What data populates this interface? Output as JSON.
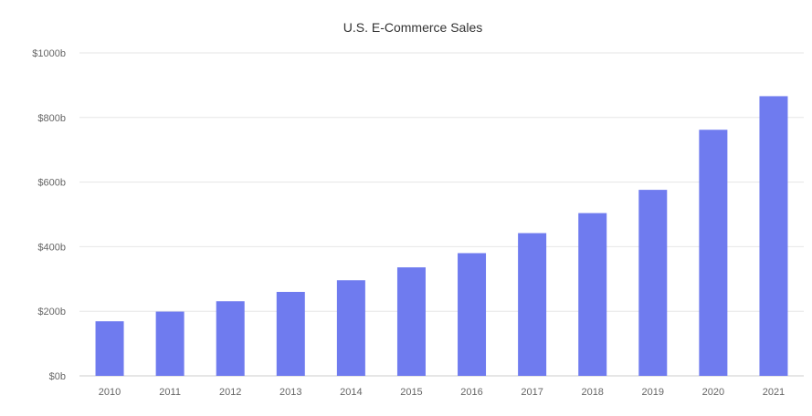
{
  "chart_data": {
    "type": "bar",
    "title": "U.S. E-Commerce Sales",
    "xlabel": "",
    "ylabel": "",
    "categories": [
      "2010",
      "2011",
      "2012",
      "2013",
      "2014",
      "2015",
      "2016",
      "2017",
      "2018",
      "2019",
      "2020",
      "2021"
    ],
    "values": [
      169,
      199,
      231,
      260,
      296,
      336,
      380,
      442,
      504,
      576,
      762,
      866
    ],
    "ylim": [
      0,
      1000
    ],
    "yticks": [
      0,
      200,
      400,
      600,
      800,
      1000
    ],
    "ytick_labels": [
      "$0b",
      "$200b",
      "$400b",
      "$600b",
      "$800b",
      "$1000b"
    ],
    "grid": true,
    "legend": "none",
    "bar_color": "#6f7bef"
  }
}
